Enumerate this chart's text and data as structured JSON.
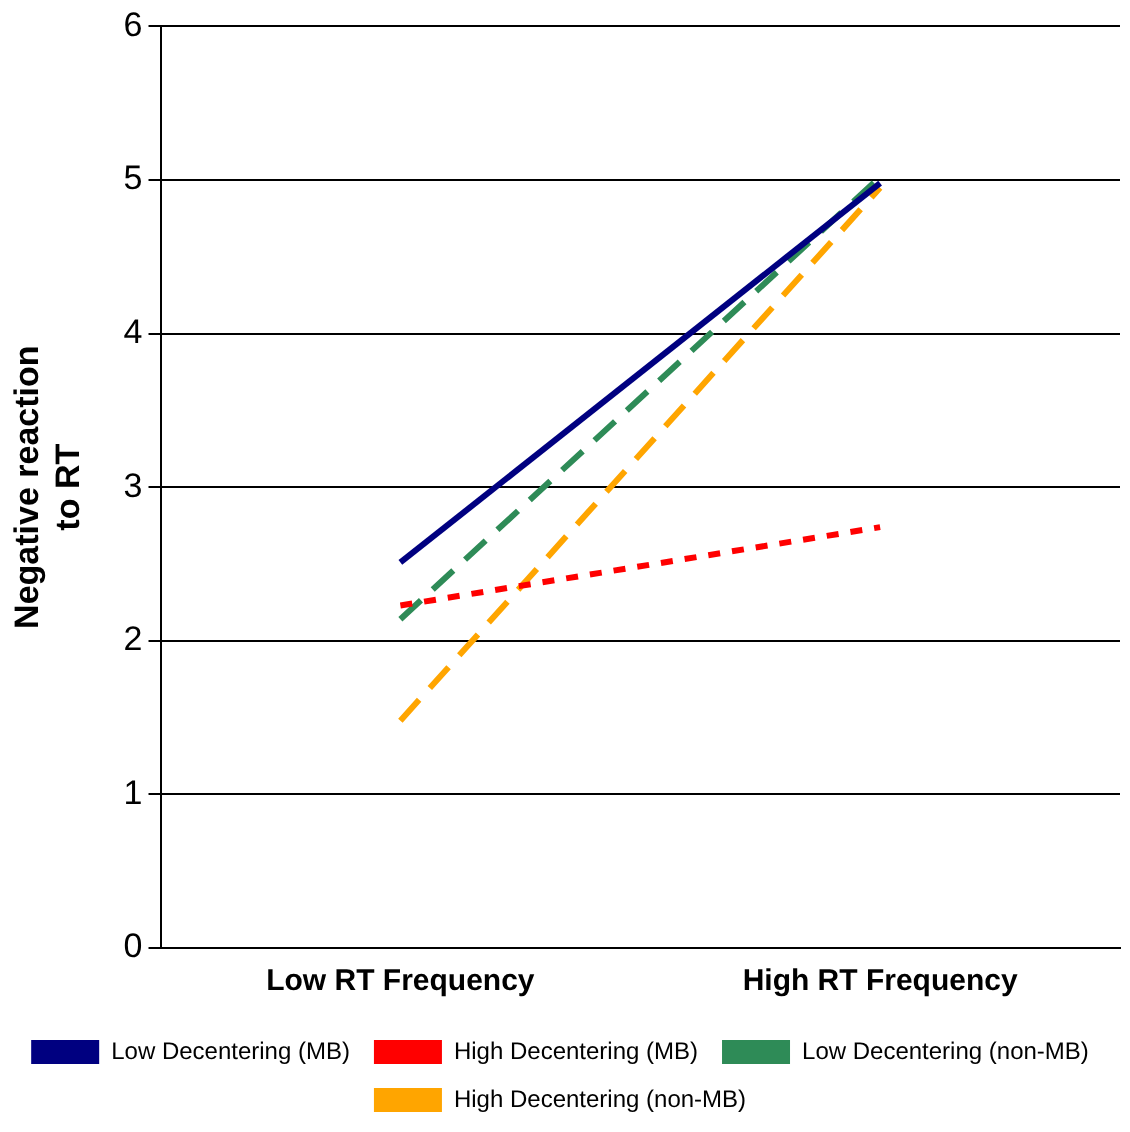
{
  "chart_data": {
    "type": "line",
    "ylabel": "Negative reaction to RT",
    "categories": [
      "Low RT Frequency",
      "High RT Frequency"
    ],
    "series": [
      {
        "name": "Low Decentering (MB)",
        "color": "#000080",
        "values": [
          2.51,
          4.98
        ],
        "line_style": "solid"
      },
      {
        "name": "High Decentering (MB)",
        "color": "#ff0000",
        "values": [
          2.23,
          2.74
        ],
        "line_style": "dotted"
      },
      {
        "name": "Low Decentering (non-MB)",
        "color": "#2e8b57",
        "values": [
          2.14,
          5.02
        ],
        "line_style": "dashed"
      },
      {
        "name": "High Decentering (non-MB)",
        "color": "#ffa500",
        "values": [
          1.48,
          4.95
        ],
        "line_style": "dashed"
      }
    ],
    "ylim": [
      0,
      6
    ],
    "yticks": [
      0,
      1,
      2,
      3,
      4,
      5,
      6
    ],
    "grid": "y",
    "legend": "bottom",
    "marker": "none"
  }
}
